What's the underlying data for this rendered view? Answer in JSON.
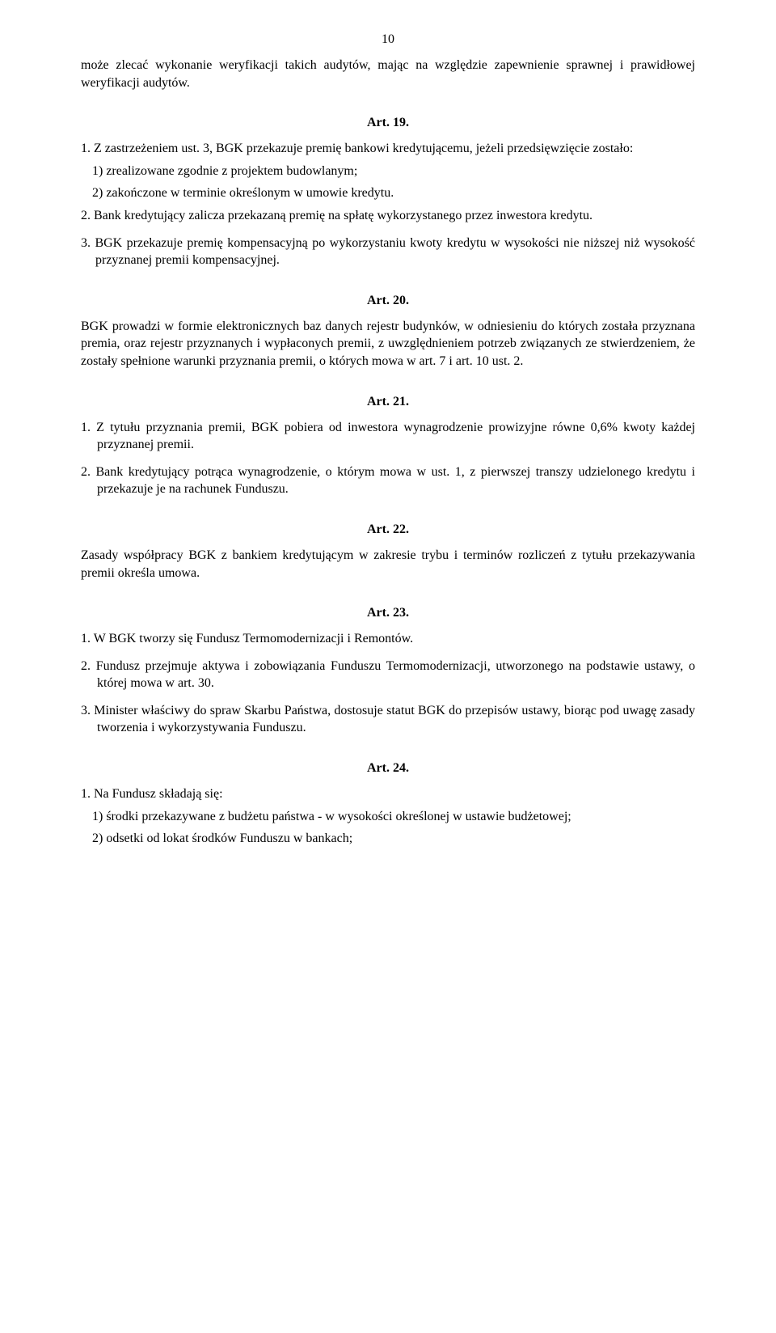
{
  "page_number": "10",
  "opening_para": "może zlecać wykonanie weryfikacji takich audytów, mając na względzie zapewnienie sprawnej i prawidłowej weryfikacji audytów.",
  "art19": {
    "heading": "Art. 19.",
    "p1_intro": "1. Z zastrzeżeniem ust. 3, BGK przekazuje premię bankowi kredytującemu, jeżeli przedsięwzięcie zostało:",
    "li1": "1) zrealizowane zgodnie z projektem budowlanym;",
    "li2": "2) zakończone w terminie określonym w umowie kredytu.",
    "p2": "2. Bank kredytujący zalicza przekazaną premię na spłatę wykorzystanego przez inwestora kredytu.",
    "p3": "3. BGK przekazuje premię kompensacyjną po wykorzystaniu kwoty kredytu w wysokości nie niższej niż wysokość przyznanej premii kompensacyjnej."
  },
  "art20": {
    "heading": "Art. 20.",
    "p1": "BGK prowadzi w formie elektronicznych baz danych rejestr budynków, w odniesieniu do których została przyznana premia, oraz rejestr przyznanych i wypłaconych premii, z uwzględnieniem potrzeb związanych ze stwierdzeniem, że zostały spełnione warunki przyznania premii, o których mowa w art. 7 i art. 10 ust. 2."
  },
  "art21": {
    "heading": "Art. 21.",
    "p1": "1. Z tytułu przyznania premii, BGK pobiera od inwestora wynagrodzenie prowizyjne równe 0,6% kwoty każdej przyznanej premii.",
    "p2": "2. Bank kredytujący potrąca wynagrodzenie, o którym mowa w ust. 1, z pierwszej transzy udzielonego kredytu i przekazuje je na rachunek Funduszu."
  },
  "art22": {
    "heading": "Art. 22.",
    "p1": "Zasady współpracy BGK z bankiem kredytującym w zakresie trybu i terminów rozliczeń z tytułu przekazywania premii określa umowa."
  },
  "art23": {
    "heading": "Art. 23.",
    "p1": "1. W BGK tworzy się Fundusz Termomodernizacji i Remontów.",
    "p2": "2. Fundusz przejmuje aktywa i zobowiązania Funduszu Termomodernizacji, utworzonego na podstawie ustawy, o której mowa w art. 30.",
    "p3": "3. Minister właściwy do spraw Skarbu Państwa, dostosuje statut BGK do przepisów ustawy, biorąc pod uwagę zasady tworzenia i wykorzystywania Funduszu."
  },
  "art24": {
    "heading": "Art. 24.",
    "intro": "1. Na Fundusz składają się:",
    "li1": "1) środki przekazywane z budżetu państwa - w wysokości określonej w ustawie budżetowej;",
    "li2": "2) odsetki od lokat środków Funduszu w bankach;"
  }
}
